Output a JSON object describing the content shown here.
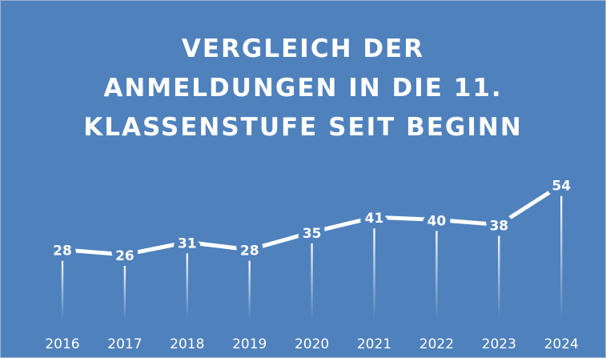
{
  "chart_data": {
    "type": "line",
    "title": [
      "VERGLEICH DER",
      "ANMELDUNGEN IN DIE 11.",
      "KLASSENSTUFE SEIT BEGINN"
    ],
    "categories": [
      "2016",
      "2017",
      "2018",
      "2019",
      "2020",
      "2021",
      "2022",
      "2023",
      "2024"
    ],
    "values": [
      28,
      26,
      31,
      28,
      35,
      41,
      40,
      38,
      54
    ],
    "color": "#ffffff",
    "background": "#4f81bd",
    "ylim": [
      0,
      60
    ]
  }
}
